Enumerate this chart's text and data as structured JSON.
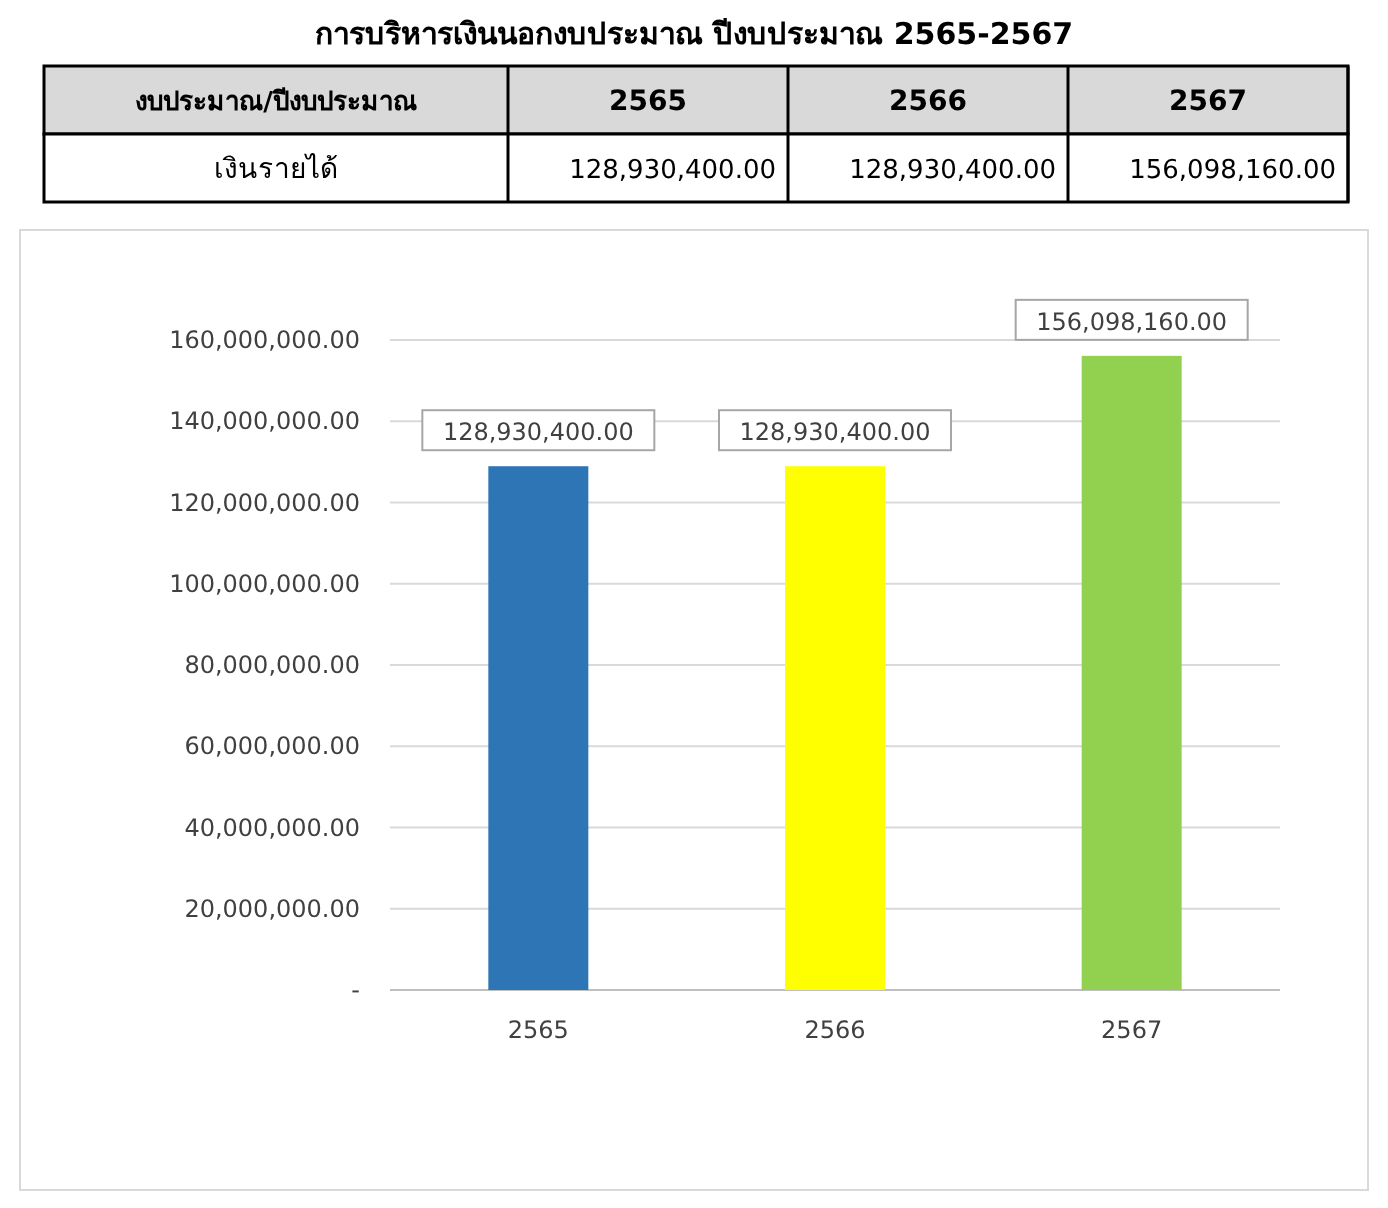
{
  "chart_data": {
    "type": "bar",
    "title": "การบริหารเงินนอกงบประมาณ ปีงบประมาณ 2565-2567",
    "annotations": [
      "งบประมาณ/ปีงบประมาณ"
    ],
    "categories": [
      "2565",
      "2566",
      "2567"
    ],
    "series": [
      {
        "name": "เงินรายได้",
        "colors": [
          "#2e75b6",
          "#ffff00",
          "#92d050"
        ],
        "values": [
          128930400,
          128930400,
          156098160
        ],
        "value_labels": [
          "128,930,400.00",
          "128,930,400.00",
          "156,098,160.00"
        ]
      }
    ],
    "ylim": [
      0,
      160000000
    ],
    "yticks": [
      {
        "value": 0,
        "label": "-"
      },
      {
        "value": 20000000,
        "label": "20,000,000.00"
      },
      {
        "value": 40000000,
        "label": "40,000,000.00"
      },
      {
        "value": 60000000,
        "label": "60,000,000.00"
      },
      {
        "value": 80000000,
        "label": "80,000,000.00"
      },
      {
        "value": 100000000,
        "label": "100,000,000.00"
      },
      {
        "value": 120000000,
        "label": "120,000,000.00"
      },
      {
        "value": 140000000,
        "label": "140,000,000.00"
      },
      {
        "value": 160000000,
        "label": "160,000,000.00"
      }
    ],
    "grid": "y"
  }
}
